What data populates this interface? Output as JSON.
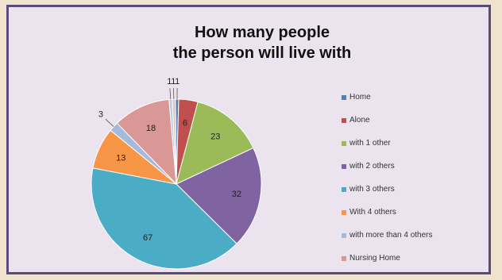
{
  "chart_data": {
    "type": "pie",
    "title_line1": "How many people",
    "title_line2": "the person will live with",
    "slices": [
      {
        "label": "Home",
        "value": 1,
        "color": "#4f81bd"
      },
      {
        "label": "Alone",
        "value": 6,
        "color": "#c0504d"
      },
      {
        "label": "with 1 other",
        "value": 23,
        "color": "#9bbb59"
      },
      {
        "label": "with 2 others",
        "value": 32,
        "color": "#8064a2"
      },
      {
        "label": "with 3 others",
        "value": 67,
        "color": "#4bacc6"
      },
      {
        "label": "With 4 others",
        "value": 13,
        "color": "#f79646"
      },
      {
        "label": "with more than 4 others",
        "value": 3,
        "color": "#a5b9dc"
      },
      {
        "label": "Nursing Home",
        "value": 18,
        "color": "#d99795"
      },
      {
        "label": "",
        "value": 1,
        "color": "#b8cfe6"
      },
      {
        "label": "",
        "value": 1,
        "color": "#e0c4c3"
      }
    ],
    "legend_position": "right"
  }
}
